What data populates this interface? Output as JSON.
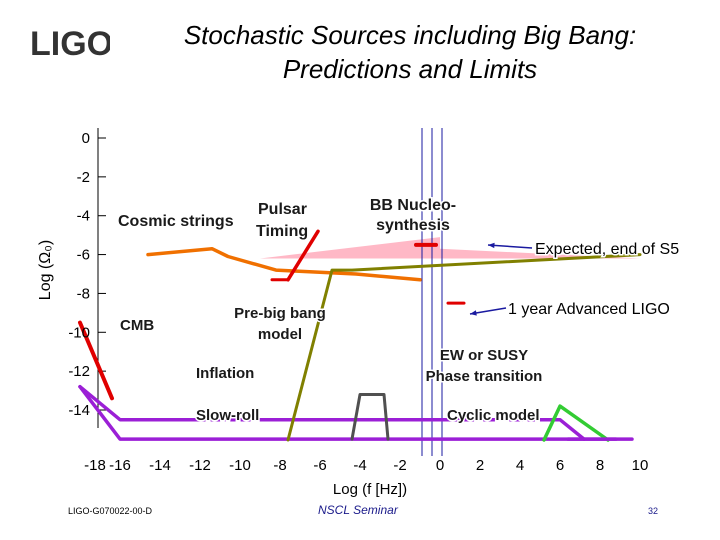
{
  "logo": {
    "text": "LIGO"
  },
  "title_lines": [
    "Stochastic Sources including Big Bang:",
    "Predictions and Limits"
  ],
  "footer": {
    "doc_id": "LIGO-G070022-00-D",
    "venue": "NSCL Seminar",
    "page": "32"
  },
  "chart_data": {
    "type": "line",
    "xlabel": "Log (f [Hz])",
    "ylabel": "Log (Ω₀)",
    "x_ticks": [
      -18,
      -16,
      -14,
      -12,
      -10,
      -8,
      -6,
      -4,
      -2,
      0,
      2,
      4,
      6,
      8,
      10
    ],
    "y_ticks": [
      0,
      -2,
      -4,
      -6,
      -8,
      -10,
      -12,
      -14
    ],
    "xlim": [
      -18,
      10
    ],
    "ylim": [
      -15,
      0
    ],
    "grid": false,
    "colors": {
      "inflation": "#9b1fd6",
      "cmb": "#e00000",
      "cosmic_strings": "#f07000",
      "pulsar": "#e00000",
      "pre_big_bang": "#808000",
      "ew_susy": "#505050",
      "cyclic": "#33cc33",
      "bbn": "#ffb0c0",
      "marker": "#1a1aa0"
    },
    "series": [
      {
        "key": "inflation",
        "x": [
          -18,
          -16,
          9.6
        ],
        "y": [
          -12.8,
          -15.5,
          -15.5
        ]
      },
      {
        "key": "slow_roll",
        "x": [
          -18,
          -16,
          6,
          7.2
        ],
        "y": [
          -12.8,
          -14.5,
          -14.5,
          -15.5
        ]
      },
      {
        "key": "cmb",
        "x": [
          -18,
          -16.4
        ],
        "y": [
          -9.5,
          -13.4
        ]
      },
      {
        "key": "cosmic_strings",
        "x": [
          -14.6,
          -11.4,
          -10.6,
          -8.2,
          -4.2,
          -1.0
        ],
        "y": [
          -6.0,
          -5.7,
          -6.1,
          -6.8,
          -7.0,
          -7.3
        ]
      },
      {
        "key": "pulsar",
        "x": [
          -8.4,
          -7.6
        ],
        "y": [
          -7.3,
          -7.3
        ]
      },
      {
        "key": "pulsar_limit",
        "x": [
          -7.6,
          -6.1
        ],
        "y": [
          -7.3,
          -4.8
        ]
      },
      {
        "key": "pre_big_bang",
        "x": [
          -7.6,
          -5.4,
          -4.4,
          10
        ],
        "y": [
          -16,
          -6.8,
          -6.8,
          -6.0
        ]
      },
      {
        "key": "ew_susy",
        "x": [
          -4.4,
          -4.0,
          -2.8,
          -2.6
        ],
        "y": [
          -15.5,
          -13.2,
          -13.2,
          -15.5
        ]
      },
      {
        "key": "cyclic",
        "x": [
          5.2,
          6.0,
          8.4
        ],
        "y": [
          -16,
          -13.8,
          -15.6
        ]
      },
      {
        "key": "cyclic2",
        "x": [
          6.4,
          8.8
        ],
        "y": [
          -15.5,
          -15.5
        ]
      },
      {
        "key": "advanced_ligo",
        "x": [
          0.4,
          1.2
        ],
        "y": [
          -8.5,
          -8.5
        ]
      },
      {
        "key": "s5",
        "x": [
          -1.2,
          -0.2
        ],
        "y": [
          -5.5,
          -5.5
        ]
      }
    ],
    "bbn_limit": {
      "x": [
        -9,
        0,
        0,
        10
      ],
      "y": [
        -6.2,
        -5.1,
        -5.7,
        -6.2
      ]
    },
    "vertical_markers_x": [
      -0.9,
      -0.4,
      0.1
    ],
    "annotations": {
      "pulsar_timing": [
        "Pulsar",
        "Timing"
      ],
      "cosmic_strings": "Cosmic strings",
      "bbn": [
        "BB Nucleo-",
        "synthesis"
      ],
      "expected_s5": "Expected, end of S5",
      "advanced_ligo": "1 year Advanced LIGO",
      "cmb": "CMB",
      "pre_big_bang": [
        "Pre-big bang",
        "model"
      ],
      "ew_susy": [
        "EW or SUSY",
        "Phase transition"
      ],
      "inflation": "Inflation",
      "cyclic": "Cyclic model",
      "slow_roll": "Slow-roll"
    }
  }
}
